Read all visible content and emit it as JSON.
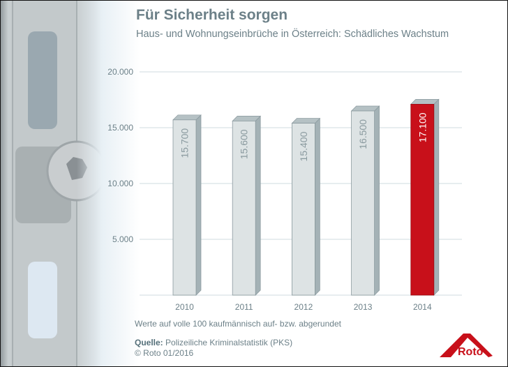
{
  "title": "Für Sicherheit sorgen",
  "subtitle": "Haus- und Wohnungseinbrüche in Österreich: Schädliches Wachstum",
  "note": "Werte auf volle 100 kaufmännisch auf- bzw. abgerundet",
  "source_label": "Quelle:",
  "source_text": "Polizeiliche Kriminalstatistik (PKS)",
  "copyright": "© Roto 01/2016",
  "logo_text": "Roto",
  "colors": {
    "bar": "#dde3e4",
    "bar_highlight": "#c8101a",
    "text": "#6c8088",
    "grid": "#dfe7ea"
  },
  "chart_data": {
    "type": "bar",
    "title": "Für Sicherheit sorgen",
    "subtitle": "Haus- und Wohnungseinbrüche in Österreich: Schädliches Wachstum",
    "categories": [
      "2010",
      "2011",
      "2012",
      "2013",
      "2014"
    ],
    "values": [
      15700,
      15600,
      15400,
      16500,
      17100
    ],
    "data_labels": [
      "15.700",
      "15.600",
      "15.400",
      "16.500",
      "17.100"
    ],
    "highlight": "2014",
    "yticks": [
      5000,
      10000,
      15000,
      20000
    ],
    "ytick_labels": [
      "5.000",
      "10.000",
      "15.000",
      "20.000"
    ],
    "ylim": [
      0,
      20000
    ],
    "grid": true,
    "xlabel": "",
    "ylabel": ""
  }
}
